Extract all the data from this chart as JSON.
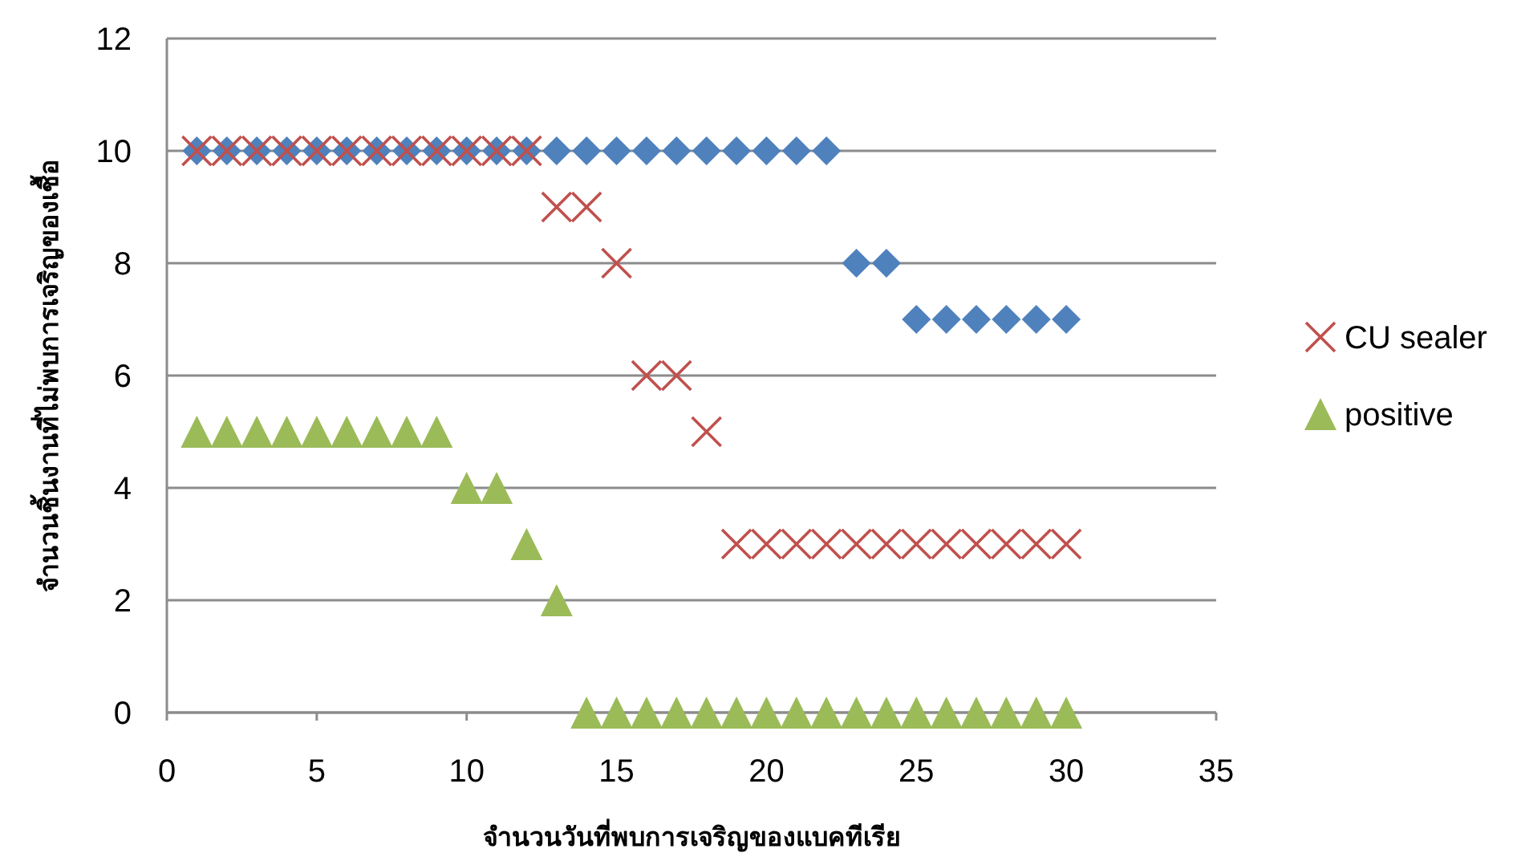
{
  "chart_data": {
    "type": "scatter",
    "xlabel": "จำนวนวันที่พบการเจริญของแบคทีเรีย",
    "ylabel": "จำนวนชิ้นงานที่ไม่พบการเจริญของเชื้อ",
    "xlim": [
      0,
      35
    ],
    "xticks": [
      0,
      5,
      10,
      15,
      20,
      25,
      30,
      35
    ],
    "ylim": [
      0,
      12
    ],
    "yticks": [
      0,
      2,
      4,
      6,
      8,
      10,
      12
    ],
    "grid": "y",
    "legend": "right",
    "series": [
      {
        "color": "#4f81bd",
        "marker": "diamond",
        "x": [
          1,
          2,
          3,
          4,
          5,
          6,
          7,
          8,
          9,
          10,
          11,
          12,
          13,
          14,
          15,
          16,
          17,
          18,
          19,
          20,
          21,
          22,
          23,
          24,
          25,
          26,
          27,
          28,
          29,
          30
        ],
        "values": [
          10,
          10,
          10,
          10,
          10,
          10,
          10,
          10,
          10,
          10,
          10,
          10,
          10,
          10,
          10,
          10,
          10,
          10,
          10,
          10,
          10,
          10,
          8,
          8,
          7,
          7,
          7,
          7,
          7,
          7
        ]
      },
      {
        "name": "CU sealer",
        "color": "#c0504d",
        "marker": "cross",
        "x": [
          1,
          2,
          3,
          4,
          5,
          6,
          7,
          8,
          9,
          10,
          11,
          12,
          13,
          14,
          15,
          16,
          17,
          18,
          19,
          20,
          21,
          22,
          23,
          24,
          25,
          26,
          27,
          28,
          29,
          30
        ],
        "values": [
          10,
          10,
          10,
          10,
          10,
          10,
          10,
          10,
          10,
          10,
          10,
          10,
          9,
          9,
          8,
          6,
          6,
          5,
          3,
          3,
          3,
          3,
          3,
          3,
          3,
          3,
          3,
          3,
          3,
          3
        ]
      },
      {
        "name": "positive",
        "color": "#9bbb59",
        "marker": "triangle",
        "x": [
          1,
          2,
          3,
          4,
          5,
          6,
          7,
          8,
          9,
          10,
          11,
          12,
          13,
          14,
          15,
          16,
          17,
          18,
          19,
          20,
          21,
          22,
          23,
          24,
          25,
          26,
          27,
          28,
          29,
          30
        ],
        "values": [
          5,
          5,
          5,
          5,
          5,
          5,
          5,
          5,
          5,
          4,
          4,
          3,
          2,
          0,
          0,
          0,
          0,
          0,
          0,
          0,
          0,
          0,
          0,
          0,
          0,
          0,
          0,
          0,
          0,
          0
        ]
      }
    ]
  }
}
